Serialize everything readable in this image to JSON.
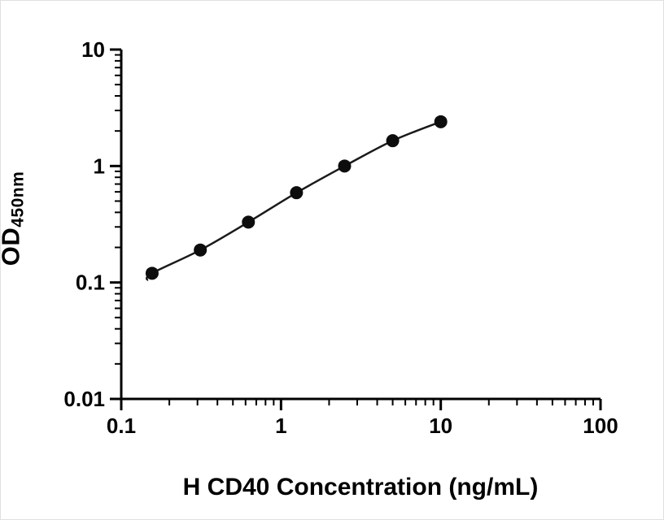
{
  "figure": {
    "background": "#ffffff"
  },
  "chart_data": {
    "type": "scatter",
    "curve": "smooth",
    "x": [
      0.156,
      0.3125,
      0.625,
      1.25,
      2.5,
      5,
      10
    ],
    "y": [
      0.12,
      0.19,
      0.33,
      0.59,
      1.0,
      1.65,
      2.4
    ],
    "title": "",
    "xlabel": "H CD40 Concentration (ng/mL)",
    "ylabel_main": "OD",
    "ylabel_sub": "450nm",
    "x_scale": "log",
    "y_scale": "log",
    "xlim": [
      0.1,
      100
    ],
    "ylim": [
      0.01,
      10
    ],
    "x_ticks": [
      {
        "value": 0.1,
        "label": "0.1"
      },
      {
        "value": 1,
        "label": "1"
      },
      {
        "value": 10,
        "label": "10"
      },
      {
        "value": 100,
        "label": "100"
      }
    ],
    "y_ticks": [
      {
        "value": 0.01,
        "label": "0.01"
      },
      {
        "value": 0.1,
        "label": "0.1"
      },
      {
        "value": 1,
        "label": "1"
      },
      {
        "value": 10,
        "label": "10"
      }
    ],
    "grid": false,
    "legend": "none",
    "axis_color": "#000000",
    "marker_color": "#0d0d0d",
    "line_color": "#1a1a1a",
    "tick_label_color": "#000000"
  }
}
